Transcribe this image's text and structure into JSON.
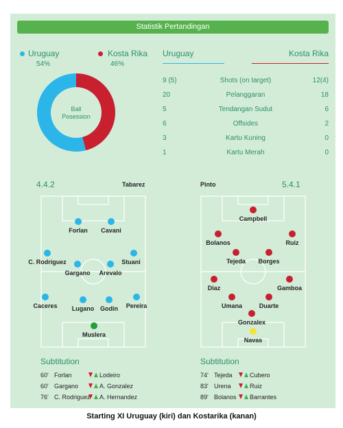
{
  "header": {
    "title": "Statistik Pertandingan"
  },
  "possession": {
    "home": {
      "name": "Uruguay",
      "pct": "54%",
      "value": 54,
      "color": "#2bb5e8"
    },
    "away": {
      "name": "Kosta Rika",
      "pct": "46%",
      "value": 46,
      "color": "#c8202f"
    },
    "center_label_1": "Ball",
    "center_label_2": "Posession"
  },
  "stats": {
    "home_name": "Uruguay",
    "away_name": "Kosta Rika",
    "rows": [
      {
        "home": "9 (5)",
        "label": "Shots (on target)",
        "away": "12(4)"
      },
      {
        "home": "20",
        "label": "Pelanggaran",
        "away": "18"
      },
      {
        "home": "5",
        "label": "Tendangan Sudut",
        "away": "6"
      },
      {
        "home": "6",
        "label": "Offsides",
        "away": "2"
      },
      {
        "home": "3",
        "label": "Kartu Kuning",
        "away": "0"
      },
      {
        "home": "1",
        "label": "Kartu Merah",
        "away": "0"
      }
    ]
  },
  "lineups": {
    "home": {
      "formation": "4.4.2",
      "coach": "Tabarez",
      "players": [
        {
          "name": "Forlan"
        },
        {
          "name": "Cavani"
        },
        {
          "name": "C. Rodriguez"
        },
        {
          "name": "Stuani"
        },
        {
          "name": "Gargano"
        },
        {
          "name": "Arevalo"
        },
        {
          "name": "Caceres"
        },
        {
          "name": "Pereira"
        },
        {
          "name": "Lugano"
        },
        {
          "name": "Godin"
        },
        {
          "name": "Muslera"
        }
      ]
    },
    "away": {
      "formation": "5.4.1",
      "coach": "Pinto",
      "players": [
        {
          "name": "Campbell"
        },
        {
          "name": "Bolanos"
        },
        {
          "name": "Ruiz"
        },
        {
          "name": "Tejeda"
        },
        {
          "name": "Borges"
        },
        {
          "name": "Diaz"
        },
        {
          "name": "Gamboa"
        },
        {
          "name": "Umana"
        },
        {
          "name": "Duarte"
        },
        {
          "name": "Gonzalex"
        },
        {
          "name": "Navas"
        }
      ]
    }
  },
  "substitutions": {
    "title": "Subtitution",
    "home": [
      {
        "min": "60'",
        "out": "Forlan",
        "in": "Lodeiro"
      },
      {
        "min": "60'",
        "out": "Gargano",
        "in": "A. Gonzalez"
      },
      {
        "min": "76'",
        "out": "C. Rodriguez",
        "in": "A. Hernandez"
      }
    ],
    "away": [
      {
        "min": "74'",
        "out": "Tejeda",
        "in": "Cubero"
      },
      {
        "min": "83'",
        "out": "Urena",
        "in": "Ruiz"
      },
      {
        "min": "89'",
        "out": "Bolanos",
        "in": "Barrantes"
      }
    ]
  },
  "caption": "Starting XI Uruguay (kiri) dan Kostarika (kanan)"
}
